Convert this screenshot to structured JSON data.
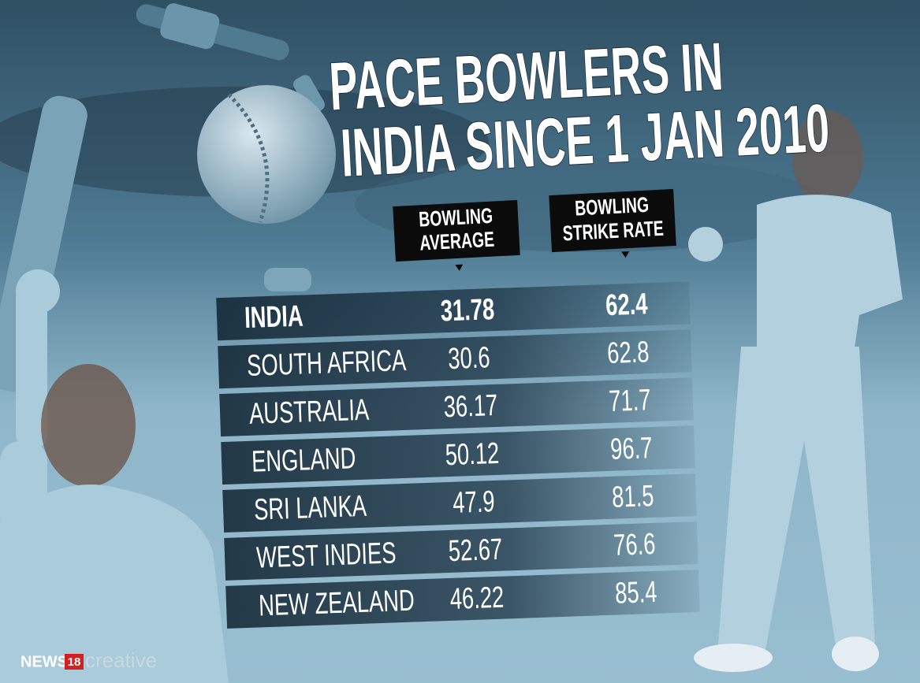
{
  "title_lines": [
    "PACE BOWLERS IN",
    "INDIA SINCE 1 JAN 2010"
  ],
  "columns": [
    [
      "BOWLING",
      "AVERAGE"
    ],
    [
      "BOWLING",
      "STRIKE RATE"
    ]
  ],
  "rows": [
    [
      "INDIA",
      "31.78",
      "62.4"
    ],
    [
      "SOUTH AFRICA",
      "30.6",
      "62.8"
    ],
    [
      "AUSTRALIA",
      "36.17",
      "71.7"
    ],
    [
      "ENGLAND",
      "50.12",
      "96.7"
    ],
    [
      "SRI LANKA",
      "47.9",
      "81.5"
    ],
    [
      "WEST INDIES",
      "52.67",
      "76.6"
    ],
    [
      "NEW ZEALAND",
      "46.22",
      "85.4"
    ]
  ],
  "brand": [
    "NEWS",
    "18",
    "creative"
  ]
}
